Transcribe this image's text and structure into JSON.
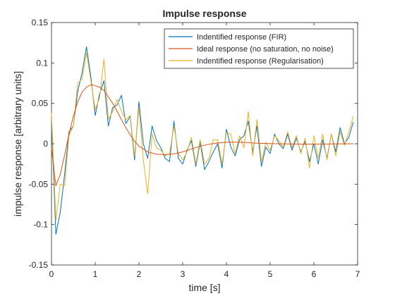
{
  "chart_data": {
    "type": "line",
    "title": "Impulse response",
    "xlabel": "time [s]",
    "ylabel": "impulse response [arbitrary units]",
    "xlim": [
      0,
      7
    ],
    "ylim": [
      -0.15,
      0.15
    ],
    "xticks": [
      0,
      1,
      2,
      3,
      4,
      5,
      6,
      7
    ],
    "xtick_labels": [
      "0",
      "1",
      "2",
      "3",
      "4",
      "5",
      "6",
      "7"
    ],
    "yticks": [
      -0.15,
      -0.1,
      -0.05,
      0,
      0.05,
      0.1,
      0.15
    ],
    "ytick_labels": [
      "-0.15",
      "-0.1",
      "-0.05",
      "0",
      "0.05",
      "0.1",
      "0.15"
    ],
    "grid": false,
    "legend_position": "top-right",
    "series": [
      {
        "name": "Indentified response (FIR)",
        "color": "#0072BD",
        "x": [
          0,
          0.1,
          0.2,
          0.3,
          0.4,
          0.5,
          0.6,
          0.7,
          0.8,
          0.9,
          1.0,
          1.1,
          1.2,
          1.3,
          1.4,
          1.5,
          1.6,
          1.7,
          1.8,
          1.9,
          2.0,
          2.1,
          2.2,
          2.3,
          2.4,
          2.5,
          2.6,
          2.7,
          2.8,
          2.9,
          3.0,
          3.1,
          3.2,
          3.3,
          3.4,
          3.5,
          3.6,
          3.7,
          3.8,
          3.9,
          4.0,
          4.1,
          4.2,
          4.3,
          4.4,
          4.5,
          4.6,
          4.7,
          4.8,
          4.9,
          5.0,
          5.1,
          5.2,
          5.3,
          5.4,
          5.5,
          5.6,
          5.7,
          5.8,
          5.9,
          6.0,
          6.1,
          6.2,
          6.3,
          6.4,
          6.5,
          6.6,
          6.7,
          6.8,
          6.9
        ],
        "y": [
          0.03,
          -0.112,
          -0.085,
          -0.038,
          0.015,
          0.022,
          0.065,
          0.088,
          0.12,
          0.083,
          0.035,
          0.062,
          0.078,
          0.022,
          0.045,
          0.048,
          0.06,
          0.025,
          0.034,
          -0.02,
          0.052,
          0.0,
          -0.018,
          0.022,
          0.004,
          -0.005,
          -0.018,
          -0.022,
          0.028,
          -0.018,
          -0.025,
          -0.008,
          0.004,
          -0.028,
          0.002,
          -0.032,
          -0.022,
          -0.01,
          0.0,
          -0.03,
          0.018,
          -0.004,
          -0.015,
          0.005,
          0.01,
          0.028,
          -0.01,
          0.022,
          -0.028,
          -0.004,
          -0.012,
          0.012,
          0.0,
          -0.006,
          0.012,
          -0.008,
          0.007,
          -0.01,
          0.003,
          -0.022,
          0.0,
          -0.025,
          0.005,
          -0.018,
          0.012,
          -0.01,
          0.02,
          0.0,
          0.008,
          0.027
        ]
      },
      {
        "name": "Ideal response (no saturation, no noise)",
        "color": "#D95319",
        "x": [
          0,
          0.1,
          0.2,
          0.3,
          0.4,
          0.5,
          0.6,
          0.7,
          0.8,
          0.9,
          1.0,
          1.1,
          1.2,
          1.3,
          1.4,
          1.5,
          1.6,
          1.7,
          1.8,
          1.9,
          2.0,
          2.2,
          2.4,
          2.6,
          2.8,
          3.0,
          3.2,
          3.4,
          3.6,
          3.8,
          4.0,
          4.2,
          4.4,
          4.6,
          4.8,
          5.0,
          5.4,
          5.8,
          6.2,
          6.6,
          6.9
        ],
        "y": [
          -0.005,
          -0.052,
          -0.038,
          -0.014,
          0.012,
          0.034,
          0.052,
          0.064,
          0.07,
          0.073,
          0.072,
          0.07,
          0.066,
          0.058,
          0.05,
          0.04,
          0.03,
          0.02,
          0.011,
          0.003,
          -0.003,
          -0.01,
          -0.013,
          -0.0135,
          -0.0125,
          -0.01,
          -0.0065,
          -0.003,
          -0.0005,
          0.001,
          0.002,
          0.002,
          0.0018,
          0.001,
          0.0005,
          0.0002,
          -0.0002,
          -0.0004,
          -0.0003,
          -0.0001,
          0.0
        ]
      },
      {
        "name": "Indentified response (Regularisation)",
        "color": "#EDB120",
        "x": [
          0,
          0.1,
          0.2,
          0.3,
          0.4,
          0.5,
          0.6,
          0.7,
          0.8,
          0.9,
          1.0,
          1.1,
          1.2,
          1.3,
          1.4,
          1.5,
          1.6,
          1.7,
          1.8,
          1.9,
          2.0,
          2.1,
          2.2,
          2.3,
          2.4,
          2.5,
          2.6,
          2.7,
          2.8,
          2.9,
          3.0,
          3.1,
          3.2,
          3.3,
          3.4,
          3.5,
          3.6,
          3.7,
          3.8,
          3.9,
          4.0,
          4.1,
          4.2,
          4.3,
          4.4,
          4.5,
          4.6,
          4.7,
          4.8,
          4.9,
          5.0,
          5.1,
          5.2,
          5.3,
          5.4,
          5.5,
          5.6,
          5.7,
          5.8,
          5.9,
          6.0,
          6.1,
          6.2,
          6.3,
          6.4,
          6.5,
          6.6,
          6.7,
          6.8,
          6.9
        ],
        "y": [
          0.038,
          -0.095,
          -0.05,
          -0.052,
          0.01,
          0.022,
          0.075,
          0.08,
          0.113,
          0.078,
          0.042,
          0.057,
          0.105,
          0.03,
          0.04,
          0.055,
          0.04,
          0.03,
          0.035,
          -0.015,
          0.045,
          -0.02,
          -0.062,
          0.012,
          -0.005,
          -0.008,
          -0.015,
          -0.012,
          0.022,
          -0.012,
          -0.02,
          -0.01,
          0.008,
          -0.025,
          0.005,
          -0.025,
          -0.018,
          0.005,
          0.005,
          -0.025,
          0.014,
          0.012,
          -0.012,
          0.01,
          -0.005,
          0.04,
          -0.015,
          0.03,
          -0.022,
          0.002,
          -0.008,
          0.01,
          0.004,
          -0.004,
          0.015,
          -0.005,
          0.01,
          -0.012,
          0.007,
          -0.03,
          0.01,
          -0.018,
          0.012,
          -0.02,
          0.012,
          -0.015,
          0.015,
          -0.002,
          0.015,
          0.034
        ]
      }
    ]
  }
}
